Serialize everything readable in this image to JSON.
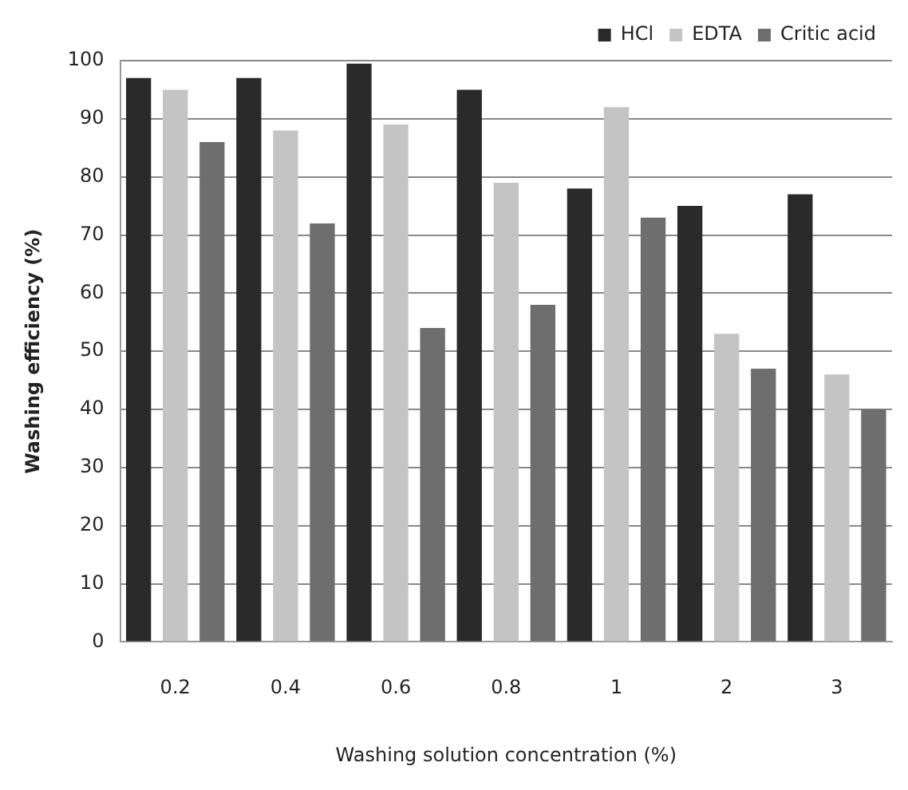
{
  "chart_data": {
    "type": "bar",
    "xlabel": "Washing solution concentration (%)",
    "ylabel": "Washing efficiency (%)",
    "categories": [
      "0.2",
      "0.4",
      "0.6",
      "0.8",
      "1",
      "2",
      "3"
    ],
    "series": [
      {
        "name": "HCl",
        "color": "#2a2a2a",
        "values": [
          97,
          97,
          99.5,
          95,
          78,
          75,
          77
        ]
      },
      {
        "name": "EDTA",
        "color": "#c4c4c4",
        "values": [
          95,
          88,
          89,
          79,
          92,
          53,
          46
        ]
      },
      {
        "name": "Critic acid",
        "color": "#6e6e6e",
        "values": [
          86,
          72,
          54,
          58,
          73,
          47,
          40
        ]
      }
    ],
    "ylim": [
      0,
      100
    ],
    "yticks": [
      0,
      10,
      20,
      30,
      40,
      50,
      60,
      70,
      80,
      90,
      100
    ],
    "grid": "y",
    "legend": "top right"
  }
}
